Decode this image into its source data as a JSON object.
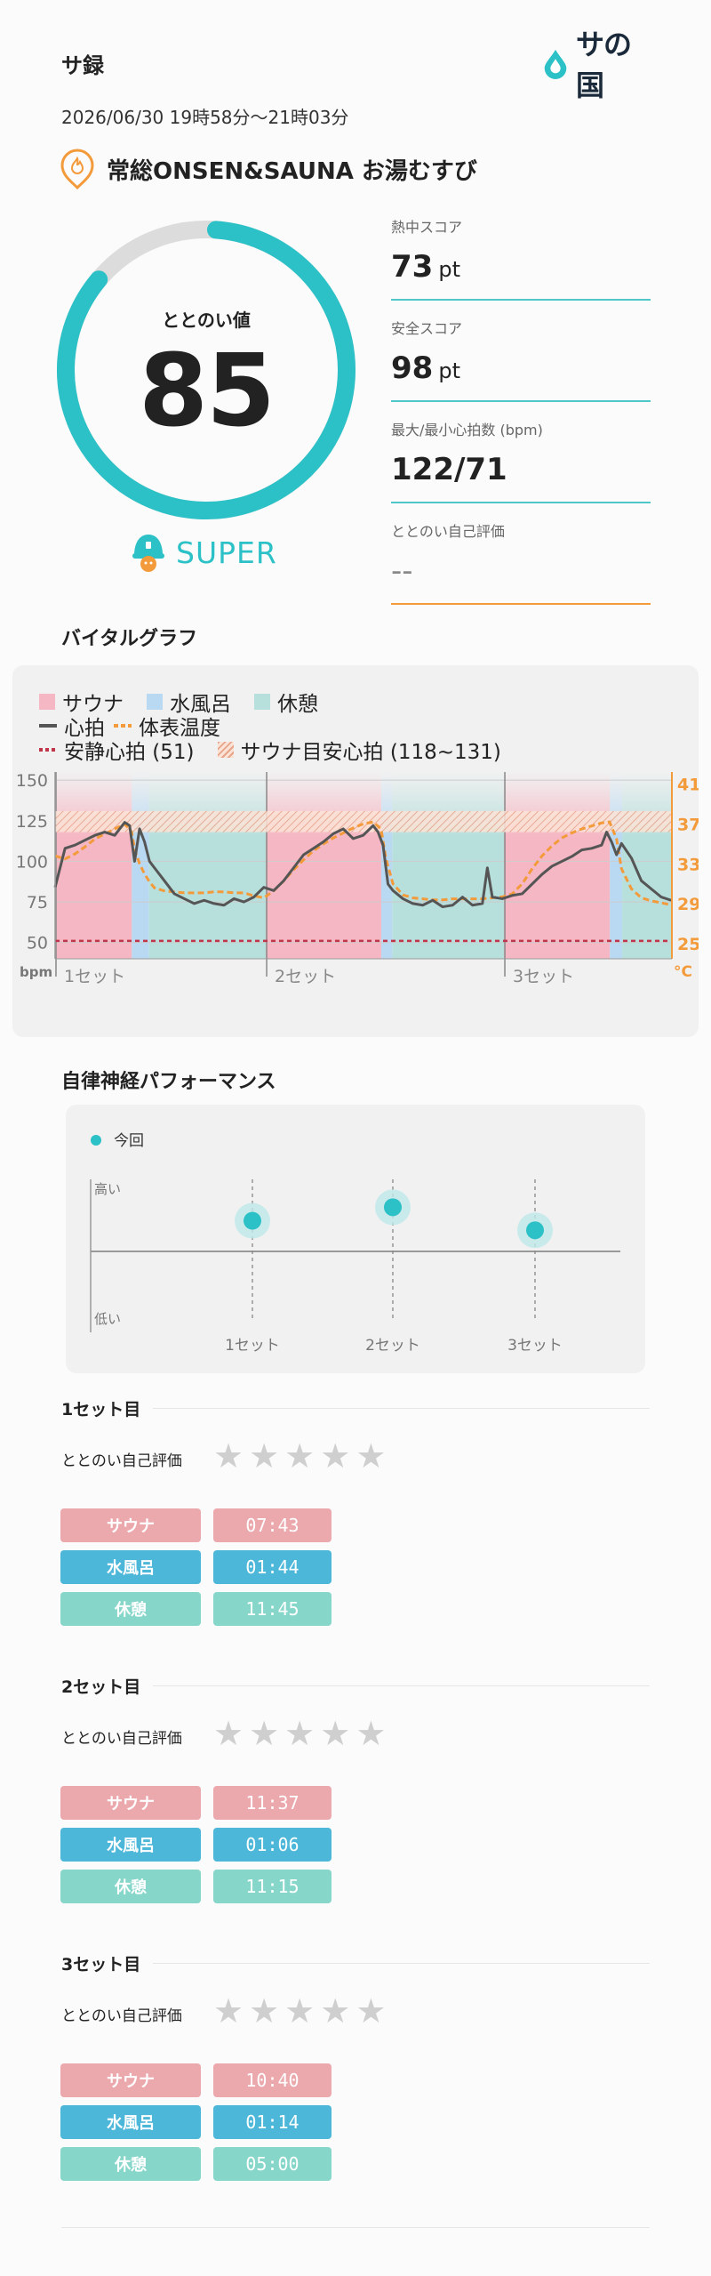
{
  "header": {
    "title": "サ録",
    "logo_text": "サの国",
    "datetime": "2026/06/30 19時58分～21時03分"
  },
  "facility": {
    "name": "常総ONSEN&SAUNA お湯むすび"
  },
  "totonoi": {
    "label": "ととのい値",
    "value": "85",
    "score_fraction": 0.85,
    "rank": "SUPER"
  },
  "scores": [
    {
      "label": "熱中スコア",
      "value": "73",
      "unit": "pt"
    },
    {
      "label": "安全スコア",
      "value": "98",
      "unit": "pt"
    },
    {
      "label": "最大/最小心拍数 (bpm)",
      "value": "122/71",
      "unit": ""
    },
    {
      "label": "ととのい自己評価",
      "value": "--",
      "unit": ""
    }
  ],
  "vital": {
    "title": "バイタルグラフ",
    "legend": {
      "sauna": "サウナ",
      "mizu": "水風呂",
      "rest": "休憩",
      "heart": "心拍",
      "temp": "体表温度",
      "resting": "安静心拍 (51)",
      "safe": "サウナ目安心拍 (118~131)"
    },
    "colors": {
      "sauna": "#f5b7c3",
      "mizu": "#b9d9f2",
      "rest": "#b7dfdc",
      "heart": "#555555",
      "temp": "#f39a3a",
      "resting": "#c0354a"
    }
  },
  "chart_data": [
    {
      "type": "line",
      "title": "バイタルグラフ",
      "xlabel": "",
      "ylabel": "bpm",
      "y2label": "°C",
      "ylim": [
        40,
        155
      ],
      "y2lim": [
        23.5,
        42.2
      ],
      "yticks": [
        150,
        125,
        100,
        75,
        50
      ],
      "y2ticks": [
        41,
        37,
        33,
        29,
        25
      ],
      "x_set_labels": [
        "1セット",
        "2セット",
        "3セット"
      ],
      "resting_hr": 51,
      "safe_band": [
        118,
        131
      ],
      "phases": [
        {
          "type": "sauna",
          "start": 0,
          "end": 7.72
        },
        {
          "type": "mizu",
          "start": 7.72,
          "end": 9.45
        },
        {
          "type": "rest",
          "start": 9.45,
          "end": 21.2
        },
        {
          "type": "sauna",
          "start": 21.2,
          "end": 32.82
        },
        {
          "type": "mizu",
          "start": 32.82,
          "end": 33.92
        },
        {
          "type": "rest",
          "start": 33.92,
          "end": 45.17
        },
        {
          "type": "sauna",
          "start": 45.17,
          "end": 55.83
        },
        {
          "type": "mizu",
          "start": 55.83,
          "end": 57.07
        },
        {
          "type": "rest",
          "start": 57.07,
          "end": 62.07
        }
      ],
      "series": [
        {
          "name": "心拍",
          "x": [
            0,
            1,
            2,
            3,
            4,
            5,
            6,
            7,
            7.5,
            8,
            8.5,
            9,
            9.5,
            10,
            11,
            12,
            13,
            14,
            15,
            16,
            17,
            18,
            19,
            20,
            21,
            22,
            23,
            24,
            25,
            26,
            27,
            28,
            29,
            30,
            31,
            32,
            32.5,
            33,
            33.5,
            34,
            35,
            36,
            37,
            38,
            39,
            40,
            41,
            42,
            43,
            43.5,
            44,
            45,
            46,
            47,
            48,
            49,
            50,
            51,
            52,
            53,
            54,
            55,
            55.5,
            56,
            56.5,
            57,
            58,
            59,
            60,
            61,
            62
          ],
          "values": [
            84,
            108,
            110,
            113,
            116,
            118,
            116,
            124,
            122,
            100,
            120,
            112,
            100,
            96,
            88,
            80,
            77,
            74,
            76,
            74,
            73,
            77,
            75,
            78,
            84,
            82,
            88,
            96,
            104,
            108,
            112,
            117,
            120,
            114,
            116,
            122,
            118,
            110,
            86,
            82,
            77,
            74,
            73,
            76,
            72,
            73,
            78,
            73,
            74,
            96,
            78,
            77,
            79,
            80,
            86,
            92,
            97,
            100,
            103,
            107,
            108,
            110,
            118,
            112,
            104,
            111,
            102,
            88,
            83,
            78,
            76
          ]
        },
        {
          "name": "体表温度",
          "x": [
            0,
            1,
            2,
            3,
            4,
            5,
            6,
            7,
            7.7,
            8,
            8.5,
            9,
            9.5,
            10,
            11,
            12,
            13,
            14,
            15,
            16,
            17,
            18,
            19,
            20,
            21,
            22,
            23,
            24,
            25,
            26,
            27,
            28,
            29,
            30,
            31,
            32,
            32.8,
            33.3,
            34,
            35,
            36,
            37,
            38,
            39,
            40,
            41,
            42,
            43,
            44,
            45,
            46,
            47,
            48,
            49,
            50,
            51,
            52,
            53,
            54,
            55,
            55.8,
            56.5,
            57,
            58,
            59,
            60,
            61,
            62
          ],
          "y2": [
            33.8,
            33.5,
            34,
            34.7,
            35.5,
            36,
            36.5,
            37,
            36.2,
            34.5,
            33,
            32,
            31.2,
            30.6,
            30.3,
            30.2,
            30.1,
            30.1,
            30.1,
            30.2,
            30.2,
            30.1,
            30.1,
            29.8,
            29.6,
            30.3,
            31.3,
            32.4,
            33.4,
            34.3,
            35,
            35.6,
            36.1,
            36.6,
            37,
            37.2,
            36.5,
            33.5,
            31,
            29.9,
            29.6,
            29.5,
            29.4,
            29.4,
            29.5,
            29.5,
            29.5,
            29.5,
            29.6,
            29.7,
            30,
            31,
            32.5,
            33.8,
            34.8,
            35.6,
            36.1,
            36.5,
            36.8,
            37.1,
            37.2,
            35.5,
            32.5,
            30.5,
            29.6,
            29.3,
            29.1,
            28.9
          ]
        }
      ]
    },
    {
      "type": "scatter",
      "title": "自律神経パフォーマンス",
      "categories": [
        "1セット",
        "2セット",
        "3セット"
      ],
      "y_labels": [
        "高い",
        "低い"
      ],
      "ylim": [
        0,
        1
      ],
      "series": [
        {
          "name": "今回",
          "values": [
            0.72,
            0.82,
            0.65
          ]
        }
      ]
    }
  ],
  "autonomic": {
    "title": "自律神経パフォーマンス",
    "legend": "今回",
    "high": "高い",
    "low": "低い",
    "sets": [
      "1セット",
      "2セット",
      "3セット"
    ]
  },
  "sets": [
    {
      "title": "1セット目",
      "self_label": "ととのい自己評価",
      "rating": 0,
      "phases": [
        {
          "label": "サウナ",
          "time": "07:43"
        },
        {
          "label": "水風呂",
          "time": "01:44"
        },
        {
          "label": "休憩",
          "time": "11:45"
        }
      ]
    },
    {
      "title": "2セット目",
      "self_label": "ととのい自己評価",
      "rating": 0,
      "phases": [
        {
          "label": "サウナ",
          "time": "11:37"
        },
        {
          "label": "水風呂",
          "time": "01:06"
        },
        {
          "label": "休憩",
          "time": "11:15"
        }
      ]
    },
    {
      "title": "3セット目",
      "self_label": "ととのい自己評価",
      "rating": 0,
      "phases": [
        {
          "label": "サウナ",
          "time": "10:40"
        },
        {
          "label": "水風呂",
          "time": "01:14"
        },
        {
          "label": "休憩",
          "time": "05:00"
        }
      ]
    }
  ]
}
